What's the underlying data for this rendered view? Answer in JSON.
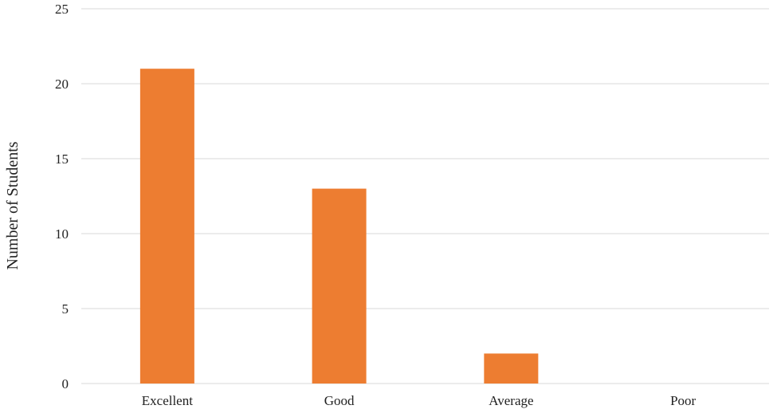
{
  "chart_data": {
    "type": "bar",
    "title": "",
    "xlabel": "",
    "ylabel": "Number of Students",
    "categories": [
      "Excellent",
      "Good",
      "Average",
      "Poor"
    ],
    "values": [
      21,
      13,
      2,
      0
    ],
    "ylim": [
      0,
      25
    ],
    "yticks": [
      0,
      5,
      10,
      15,
      20,
      25
    ],
    "grid": true,
    "legend": "none",
    "bar_color": "#ED7D31",
    "grid_color": "#D9D9D9"
  }
}
